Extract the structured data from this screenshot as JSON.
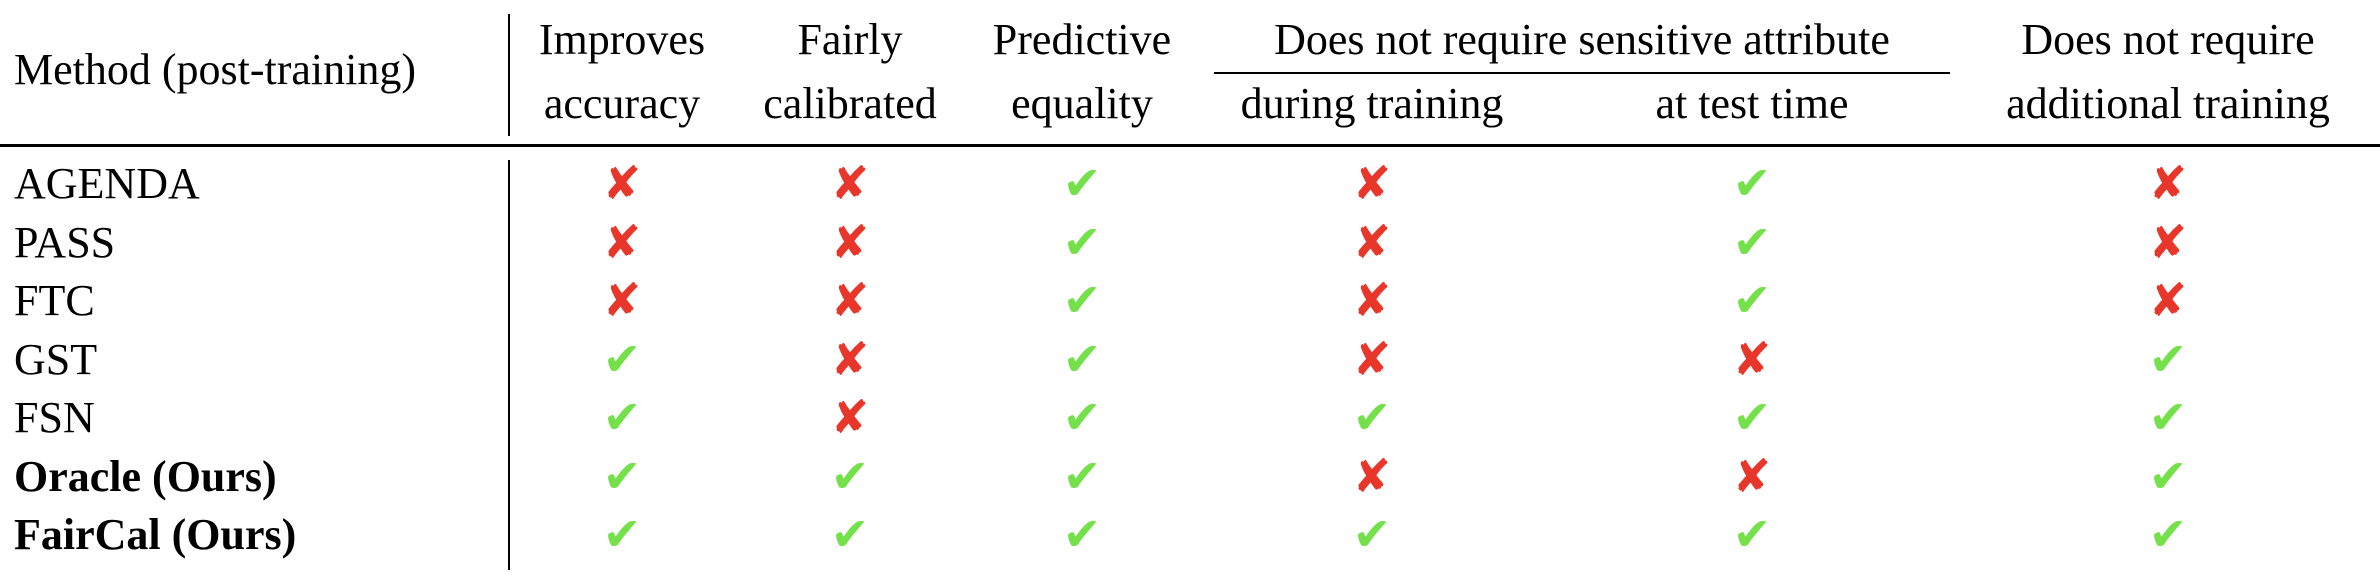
{
  "table": {
    "method_header": "Method (post-training)",
    "columns": [
      {
        "line1": "Improves",
        "line2": "accuracy"
      },
      {
        "line1": "Fairly",
        "line2": "calibrated"
      },
      {
        "line1": "Predictive",
        "line2": "equality"
      },
      {
        "line1": "",
        "line2": "during training"
      },
      {
        "line1": "",
        "line2": "at test time"
      },
      {
        "line1": "Does not require",
        "line2": "additional training"
      }
    ],
    "group_header": "Does not require sensitive attribute",
    "rows": [
      {
        "method": "AGENDA",
        "bold": false,
        "marks": [
          false,
          false,
          true,
          false,
          true,
          false
        ]
      },
      {
        "method": "PASS",
        "bold": false,
        "marks": [
          false,
          false,
          true,
          false,
          true,
          false
        ]
      },
      {
        "method": "FTC",
        "bold": false,
        "marks": [
          false,
          false,
          true,
          false,
          true,
          false
        ]
      },
      {
        "method": "GST",
        "bold": false,
        "marks": [
          true,
          false,
          true,
          false,
          false,
          true
        ]
      },
      {
        "method": "FSN",
        "bold": false,
        "marks": [
          true,
          false,
          true,
          true,
          true,
          true
        ]
      },
      {
        "method": "Oracle (Ours)",
        "bold": true,
        "marks": [
          true,
          true,
          true,
          false,
          false,
          true
        ]
      },
      {
        "method": "FairCal (Ours)",
        "bold": true,
        "marks": [
          true,
          true,
          true,
          true,
          true,
          true
        ]
      }
    ],
    "symbols": {
      "yes": "✔",
      "no": "✘"
    },
    "colors": {
      "yes": "#74e04a",
      "no": "#e8362a"
    }
  }
}
